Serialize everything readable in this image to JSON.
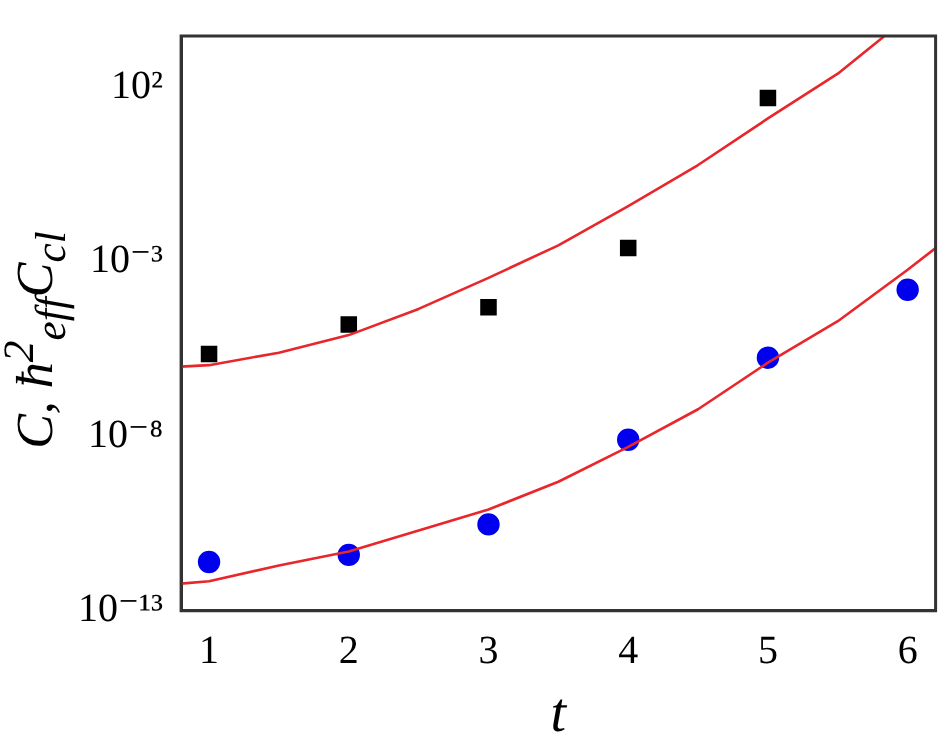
{
  "chart_data": {
    "type": "scatter",
    "xlabel": "t",
    "ylabel": "C, ħ$^{2}$$_{eff}$C$_{cl}$",
    "log": "y",
    "grid": false,
    "legend": false,
    "xlim": [
      0.8,
      6.2
    ],
    "xticks": [
      1,
      2,
      3,
      4,
      5,
      6
    ],
    "ylim": [
      1e-13,
      3000
    ],
    "yticks": [
      {
        "value": 1e-13,
        "label": "10⁻¹³"
      },
      {
        "value": 1e-08,
        "label": "10⁻⁸"
      },
      {
        "value": 0.001,
        "label": "10⁻³"
      },
      {
        "value": 100,
        "label": "10²"
      }
    ],
    "series": [
      {
        "type": "line",
        "color": "#e8262b",
        "marker": "none",
        "line_style": "solid",
        "x": [
          0.8,
          1,
          1.5,
          2,
          2.5,
          3,
          3.5,
          4,
          4.5,
          5,
          5.5,
          5.83
        ],
        "values": [
          1e-06,
          1.1e-06,
          2.5e-06,
          8e-06,
          4.5e-05,
          0.00035,
          0.003,
          0.04,
          0.6,
          13,
          250,
          2900
        ]
      },
      {
        "type": "line",
        "color": "#e8262b",
        "marker": "none",
        "line_style": "solid",
        "x": [
          0.8,
          1,
          1.5,
          2,
          2.5,
          3,
          3.5,
          4,
          4.5,
          5,
          5.5,
          6,
          6.2
        ],
        "values": [
          6e-13,
          7e-13,
          2e-12,
          5e-12,
          2e-11,
          8e-11,
          5e-10,
          5e-09,
          6e-08,
          1.3e-06,
          2e-05,
          0.0006,
          0.0025
        ]
      },
      {
        "color": "#000000",
        "marker": "square",
        "x": [
          1,
          2,
          3,
          4,
          5
        ],
        "values": [
          2.3e-06,
          1.6e-05,
          5e-05,
          0.0025,
          50
        ]
      },
      {
        "color": "#0000ee",
        "marker": "circle",
        "x": [
          1,
          2,
          3,
          4,
          5,
          6
        ],
        "values": [
          2.5e-12,
          4e-12,
          3e-11,
          8e-09,
          1.8e-06,
          0.00016
        ]
      }
    ]
  }
}
